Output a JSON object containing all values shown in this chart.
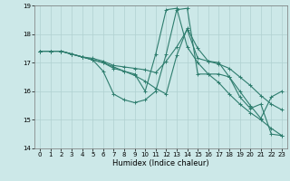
{
  "xlabel": "Humidex (Indice chaleur)",
  "bg_color": "#cce8e8",
  "grid_color": "#b0d0d0",
  "line_color": "#2e7d6e",
  "xlim": [
    -0.5,
    23.5
  ],
  "ylim": [
    14,
    19
  ],
  "yticks": [
    14,
    15,
    16,
    17,
    18,
    19
  ],
  "xticks": [
    0,
    1,
    2,
    3,
    4,
    5,
    6,
    7,
    8,
    9,
    10,
    11,
    12,
    13,
    14,
    15,
    16,
    17,
    18,
    19,
    20,
    21,
    22,
    23
  ],
  "lines": [
    [
      17.4,
      17.4,
      17.4,
      17.3,
      17.2,
      17.1,
      16.7,
      15.9,
      15.7,
      15.6,
      15.7,
      16.0,
      17.3,
      18.85,
      18.9,
      16.6,
      16.6,
      16.6,
      16.5,
      15.8,
      15.4,
      15.55,
      14.5,
      14.45
    ],
    [
      17.4,
      17.4,
      17.4,
      17.3,
      17.2,
      17.15,
      17.05,
      16.9,
      16.85,
      16.8,
      16.75,
      16.65,
      17.05,
      17.55,
      18.15,
      17.15,
      17.05,
      16.95,
      16.8,
      16.5,
      16.2,
      15.85,
      15.55,
      15.35
    ],
    [
      17.4,
      17.4,
      17.4,
      17.3,
      17.2,
      17.1,
      17.0,
      16.8,
      16.7,
      16.6,
      16.0,
      17.3,
      18.85,
      18.9,
      17.55,
      17.0,
      16.6,
      16.3,
      15.9,
      15.55,
      15.25,
      15.0,
      14.7,
      14.45
    ],
    [
      17.4,
      17.4,
      17.4,
      17.3,
      17.2,
      17.1,
      17.0,
      16.85,
      16.7,
      16.55,
      16.35,
      16.1,
      15.9,
      17.25,
      18.2,
      17.5,
      17.05,
      17.0,
      16.5,
      16.0,
      15.5,
      15.05,
      15.8,
      16.0
    ]
  ]
}
